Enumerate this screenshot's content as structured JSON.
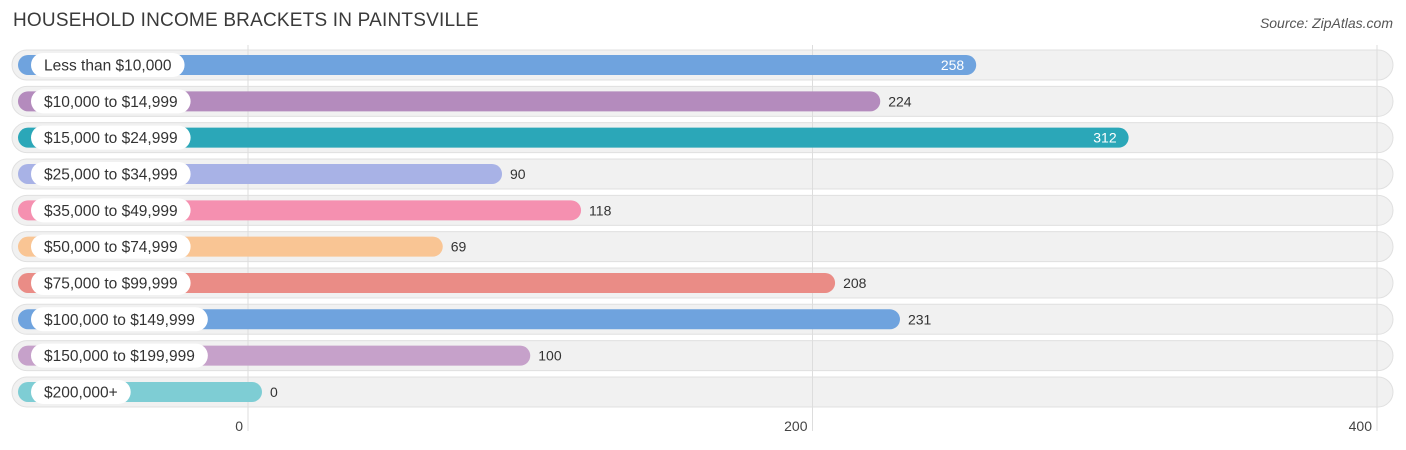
{
  "chart_data": {
    "type": "bar",
    "orientation": "horizontal",
    "title": "HOUSEHOLD INCOME BRACKETS IN PAINTSVILLE",
    "source": "Source: ZipAtlas.com",
    "xlabel": "",
    "ylabel": "",
    "xlim": [
      0,
      400
    ],
    "xticks": [
      0,
      200,
      400
    ],
    "grid": true,
    "categories": [
      "Less than $10,000",
      "$10,000 to $14,999",
      "$15,000 to $24,999",
      "$25,000 to $34,999",
      "$35,000 to $49,999",
      "$50,000 to $74,999",
      "$75,000 to $99,999",
      "$100,000 to $149,999",
      "$150,000 to $199,999",
      "$200,000+"
    ],
    "values": [
      258,
      224,
      312,
      90,
      118,
      69,
      208,
      231,
      100,
      0
    ],
    "value_labels_inside": [
      true,
      false,
      true,
      false,
      false,
      false,
      false,
      false,
      false,
      false
    ],
    "colors": [
      "#6fa3de",
      "#b48bbd",
      "#2ba7b8",
      "#a8b2e6",
      "#f590b0",
      "#f9c594",
      "#ea8c86",
      "#6fa3de",
      "#c6a1ca",
      "#7ecdd4"
    ]
  }
}
